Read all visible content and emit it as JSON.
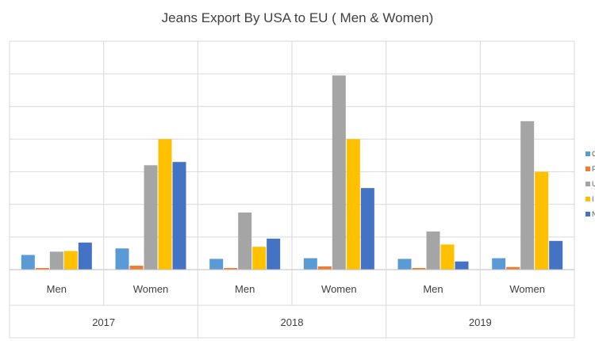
{
  "chart_data": {
    "type": "bar",
    "title": "Jeans Export By USA to EU ( Men & Women)",
    "groups": [
      "2017",
      "2018",
      "2019"
    ],
    "categories": [
      "Men",
      "Women",
      "Men",
      "Women",
      "Men",
      "Women"
    ],
    "ylim": [
      0,
      7
    ],
    "grid": true,
    "legend_position": "right",
    "legend_labels_truncated": [
      "C",
      "F",
      "U",
      "I",
      "N"
    ],
    "series": [
      {
        "color": "#5B9BD5",
        "values": [
          0.45,
          0.65,
          0.33,
          0.35,
          0.33,
          0.35
        ]
      },
      {
        "color": "#ED7D31",
        "values": [
          0.05,
          0.12,
          0.05,
          0.1,
          0.05,
          0.08
        ]
      },
      {
        "color": "#A5A5A5",
        "values": [
          0.55,
          3.2,
          1.75,
          5.95,
          1.17,
          4.55
        ]
      },
      {
        "color": "#FFC000",
        "values": [
          0.57,
          4.0,
          0.7,
          4.0,
          0.77,
          3.0
        ]
      },
      {
        "color": "#4472C4",
        "values": [
          0.83,
          3.3,
          0.95,
          2.5,
          0.25,
          0.88
        ]
      }
    ]
  }
}
